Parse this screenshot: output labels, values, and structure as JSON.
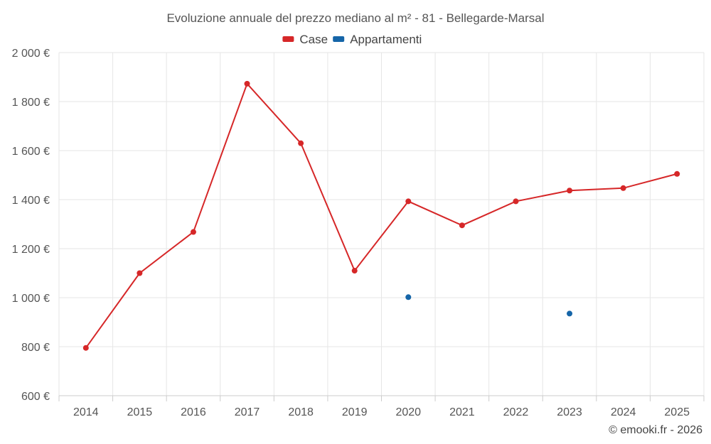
{
  "chart_data": {
    "type": "line",
    "title": "Evoluzione annuale del prezzo mediano al m² - 81 - Bellegarde-Marsal",
    "categories": [
      "2014",
      "2015",
      "2016",
      "2017",
      "2018",
      "2019",
      "2020",
      "2021",
      "2022",
      "2023",
      "2024",
      "2025"
    ],
    "y_ticks": [
      "600 €",
      "800 €",
      "1 000 €",
      "1 200 €",
      "1 400 €",
      "1 600 €",
      "1 800 €",
      "2 000 €"
    ],
    "y_tick_values": [
      600,
      800,
      1000,
      1200,
      1400,
      1600,
      1800,
      2000
    ],
    "ylim": [
      600,
      2000
    ],
    "grid": true,
    "legend_position": "top-center",
    "series": [
      {
        "name": "Case",
        "color": "#d62728",
        "values": [
          795,
          1100,
          1268,
          1873,
          1630,
          1110,
          1393,
          1295,
          1393,
          1437,
          1447,
          1505
        ]
      },
      {
        "name": "Appartamenti",
        "color": "#1565a8",
        "values": [
          null,
          null,
          null,
          null,
          null,
          null,
          1002,
          null,
          null,
          935,
          null,
          null
        ]
      }
    ]
  },
  "credit": "© emooki.fr - 2026"
}
